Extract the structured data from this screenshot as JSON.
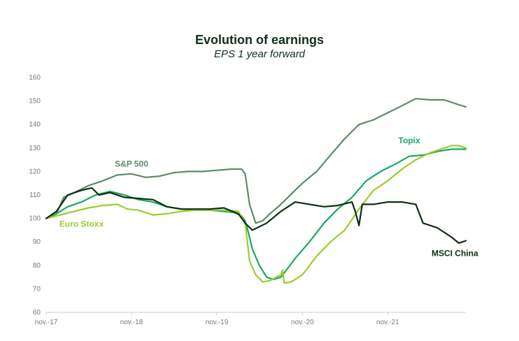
{
  "title": "Evolution of earnings",
  "subtitle": "EPS 1 year forward",
  "colors": {
    "sp500": "#5e8a68",
    "topix": "#1aa865",
    "euro_stoxx": "#9acd2c",
    "msci_china": "#0d2e12",
    "axis": "#cccccc",
    "tick": "#777777"
  },
  "chart_data": {
    "type": "line",
    "title": "Evolution of earnings",
    "subtitle": "EPS 1 year forward",
    "x_tick_labels": [
      "nov.-17",
      "nov.-18",
      "nov.-19",
      "nov.-20",
      "nov.-21"
    ],
    "y_ticks": [
      60,
      70,
      80,
      90,
      100,
      110,
      120,
      130,
      140,
      150,
      160
    ],
    "ylim": [
      60,
      160
    ],
    "xlim": [
      "2017-11",
      "2022-10"
    ],
    "grid": false,
    "series": [
      {
        "name": "S&P 500",
        "color": "#5e8a68",
        "points": [
          [
            "2017-11-01",
            100
          ],
          [
            "2017-12-15",
            102
          ],
          [
            "2018-01-15",
            109
          ],
          [
            "2018-03-01",
            111
          ],
          [
            "2018-05-01",
            114
          ],
          [
            "2018-07-01",
            116
          ],
          [
            "2018-09-01",
            118.5
          ],
          [
            "2018-11-01",
            119
          ],
          [
            "2019-01-01",
            117.5
          ],
          [
            "2019-03-01",
            118
          ],
          [
            "2019-05-01",
            119.5
          ],
          [
            "2019-07-01",
            120
          ],
          [
            "2019-09-01",
            120
          ],
          [
            "2019-11-01",
            120.5
          ],
          [
            "2020-01-01",
            121
          ],
          [
            "2020-02-15",
            121
          ],
          [
            "2020-03-01",
            119
          ],
          [
            "2020-03-20",
            106
          ],
          [
            "2020-04-15",
            98
          ],
          [
            "2020-05-15",
            99
          ],
          [
            "2020-06-15",
            102
          ],
          [
            "2020-08-01",
            106
          ],
          [
            "2020-10-01",
            112
          ],
          [
            "2020-11-01",
            115
          ],
          [
            "2021-01-01",
            120
          ],
          [
            "2021-03-01",
            127
          ],
          [
            "2021-05-01",
            134
          ],
          [
            "2021-07-01",
            140
          ],
          [
            "2021-09-01",
            142
          ],
          [
            "2021-11-01",
            145
          ],
          [
            "2022-01-01",
            148
          ],
          [
            "2022-03-01",
            151
          ],
          [
            "2022-05-01",
            150.5
          ],
          [
            "2022-07-01",
            150.5
          ],
          [
            "2022-08-15",
            149
          ],
          [
            "2022-10-01",
            147.5
          ]
        ]
      },
      {
        "name": "Topix",
        "color": "#1aa865",
        "points": [
          [
            "2017-11-01",
            100
          ],
          [
            "2017-12-15",
            102
          ],
          [
            "2018-02-01",
            105
          ],
          [
            "2018-04-01",
            107
          ],
          [
            "2018-06-01",
            110
          ],
          [
            "2018-08-01",
            111.5
          ],
          [
            "2018-10-01",
            110
          ],
          [
            "2018-12-01",
            108
          ],
          [
            "2019-02-01",
            107
          ],
          [
            "2019-04-01",
            105
          ],
          [
            "2019-06-01",
            104
          ],
          [
            "2019-08-01",
            103.5
          ],
          [
            "2019-10-01",
            103.5
          ],
          [
            "2019-12-01",
            103
          ],
          [
            "2020-01-15",
            102.5
          ],
          [
            "2020-02-15",
            101
          ],
          [
            "2020-03-01",
            99
          ],
          [
            "2020-03-15",
            94
          ],
          [
            "2020-04-01",
            87
          ],
          [
            "2020-05-01",
            80
          ],
          [
            "2020-06-01",
            75
          ],
          [
            "2020-07-01",
            74
          ],
          [
            "2020-08-01",
            75
          ],
          [
            "2020-09-01",
            79
          ],
          [
            "2020-10-01",
            83
          ],
          [
            "2020-12-01",
            90
          ],
          [
            "2021-02-01",
            98
          ],
          [
            "2021-04-01",
            104
          ],
          [
            "2021-06-01",
            109
          ],
          [
            "2021-08-01",
            116
          ],
          [
            "2021-10-01",
            120
          ],
          [
            "2021-12-01",
            123
          ],
          [
            "2022-02-01",
            126.5
          ],
          [
            "2022-04-01",
            127
          ],
          [
            "2022-06-01",
            128.5
          ],
          [
            "2022-08-01",
            129.5
          ],
          [
            "2022-10-01",
            129.5
          ]
        ]
      },
      {
        "name": "Euro Stoxx",
        "color": "#9acd2c",
        "points": [
          [
            "2017-11-01",
            100
          ],
          [
            "2018-01-01",
            101.5
          ],
          [
            "2018-03-01",
            103
          ],
          [
            "2018-05-01",
            104.5
          ],
          [
            "2018-07-01",
            105.5
          ],
          [
            "2018-09-01",
            106
          ],
          [
            "2018-10-15",
            104
          ],
          [
            "2018-12-01",
            103.5
          ],
          [
            "2019-02-01",
            101.5
          ],
          [
            "2019-04-01",
            102
          ],
          [
            "2019-06-01",
            103
          ],
          [
            "2019-08-01",
            103.5
          ],
          [
            "2019-10-01",
            103.5
          ],
          [
            "2019-12-01",
            103.5
          ],
          [
            "2020-02-01",
            103
          ],
          [
            "2020-03-01",
            98
          ],
          [
            "2020-03-20",
            82
          ],
          [
            "2020-04-15",
            76
          ],
          [
            "2020-05-15",
            73
          ],
          [
            "2020-06-15",
            73.5
          ],
          [
            "2020-08-01",
            76
          ],
          [
            "2020-08-08",
            78
          ],
          [
            "2020-08-15",
            72.5
          ],
          [
            "2020-09-15",
            73
          ],
          [
            "2020-11-01",
            76
          ],
          [
            "2021-01-01",
            84
          ],
          [
            "2021-03-01",
            90
          ],
          [
            "2021-05-01",
            95
          ],
          [
            "2021-07-01",
            104
          ],
          [
            "2021-09-01",
            112
          ],
          [
            "2021-11-01",
            116
          ],
          [
            "2022-01-01",
            121
          ],
          [
            "2022-03-01",
            125
          ],
          [
            "2022-05-01",
            128
          ],
          [
            "2022-07-01",
            130
          ],
          [
            "2022-08-01",
            131
          ],
          [
            "2022-09-01",
            131
          ],
          [
            "2022-10-01",
            130
          ]
        ]
      },
      {
        "name": "MSCI China",
        "color": "#0d2e12",
        "points": [
          [
            "2017-11-01",
            100
          ],
          [
            "2017-12-15",
            103
          ],
          [
            "2018-02-01",
            110
          ],
          [
            "2018-04-01",
            112
          ],
          [
            "2018-05-15",
            113
          ],
          [
            "2018-06-15",
            110
          ],
          [
            "2018-08-01",
            111
          ],
          [
            "2018-10-01",
            109
          ],
          [
            "2018-12-01",
            108.5
          ],
          [
            "2019-02-01",
            108
          ],
          [
            "2019-04-01",
            105
          ],
          [
            "2019-06-01",
            104
          ],
          [
            "2019-08-01",
            104
          ],
          [
            "2019-10-01",
            104
          ],
          [
            "2019-12-01",
            104.5
          ],
          [
            "2020-02-01",
            102
          ],
          [
            "2020-03-01",
            98
          ],
          [
            "2020-04-01",
            95
          ],
          [
            "2020-06-01",
            98
          ],
          [
            "2020-08-01",
            103
          ],
          [
            "2020-10-01",
            107
          ],
          [
            "2020-12-01",
            106
          ],
          [
            "2021-02-01",
            105
          ],
          [
            "2021-04-01",
            105.5
          ],
          [
            "2021-06-01",
            107
          ],
          [
            "2021-06-15",
            103
          ],
          [
            "2021-07-01",
            97
          ],
          [
            "2021-07-15",
            106
          ],
          [
            "2021-09-01",
            106
          ],
          [
            "2021-11-01",
            107
          ],
          [
            "2022-01-01",
            107
          ],
          [
            "2022-03-01",
            106
          ],
          [
            "2022-04-01",
            98
          ],
          [
            "2022-06-01",
            96
          ],
          [
            "2022-08-01",
            92
          ],
          [
            "2022-09-01",
            89.5
          ],
          [
            "2022-10-01",
            90.5
          ]
        ]
      }
    ],
    "annotations": [
      {
        "text": "S&P 500",
        "series": "S&P 500",
        "at": [
          "2018-11-01",
          122
        ]
      },
      {
        "text": "Topix",
        "series": "Topix",
        "at": [
          "2022-02-01",
          132
        ]
      },
      {
        "text": "Euro Stoxx",
        "series": "Euro Stoxx",
        "at": [
          "2018-04-01",
          96.5
        ]
      },
      {
        "text": "MSCI China",
        "series": "MSCI China",
        "at": [
          "2022-08-15",
          84
        ]
      }
    ]
  }
}
